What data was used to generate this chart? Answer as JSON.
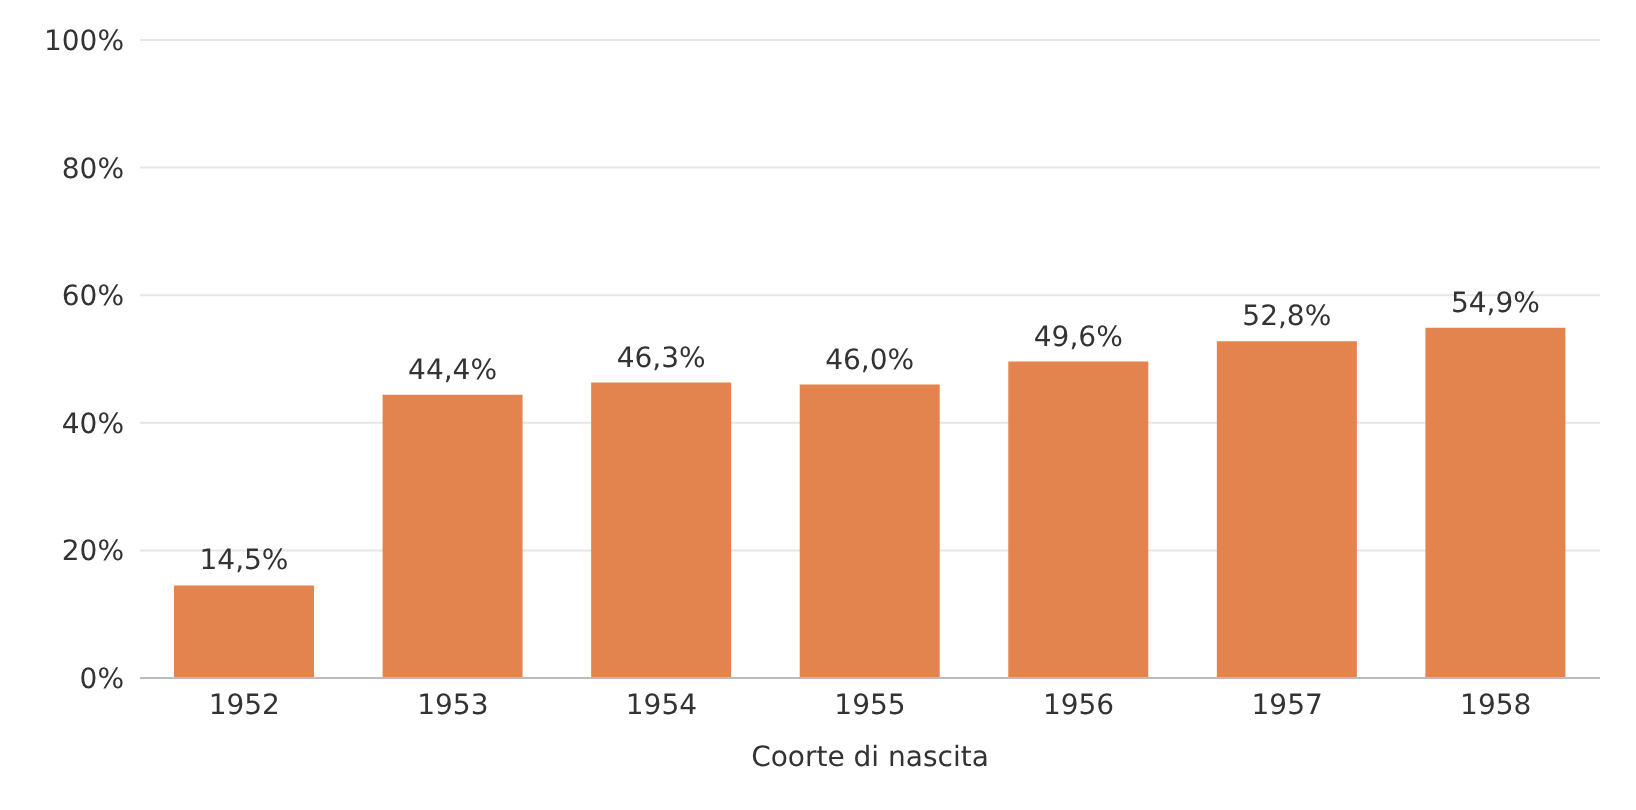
{
  "chart_data": {
    "type": "bar",
    "xlabel": "Coorte di nascita",
    "categories": [
      "1952",
      "1953",
      "1954",
      "1955",
      "1956",
      "1957",
      "1958"
    ],
    "values": [
      14.5,
      44.4,
      46.3,
      46.0,
      49.6,
      52.8,
      54.9
    ],
    "value_labels": [
      "14,5%",
      "44,4%",
      "46,3%",
      "46,0%",
      "49,6%",
      "52,8%",
      "54,9%"
    ],
    "color": "#e3844e",
    "ylim": [
      0,
      100
    ],
    "yticks": [
      {
        "value": 0,
        "label": "0%"
      },
      {
        "value": 20,
        "label": "20%"
      },
      {
        "value": 40,
        "label": "40%"
      },
      {
        "value": 60,
        "label": "60%"
      },
      {
        "value": 80,
        "label": "80%"
      },
      {
        "value": 100,
        "label": "100%"
      }
    ],
    "grid": "y"
  }
}
